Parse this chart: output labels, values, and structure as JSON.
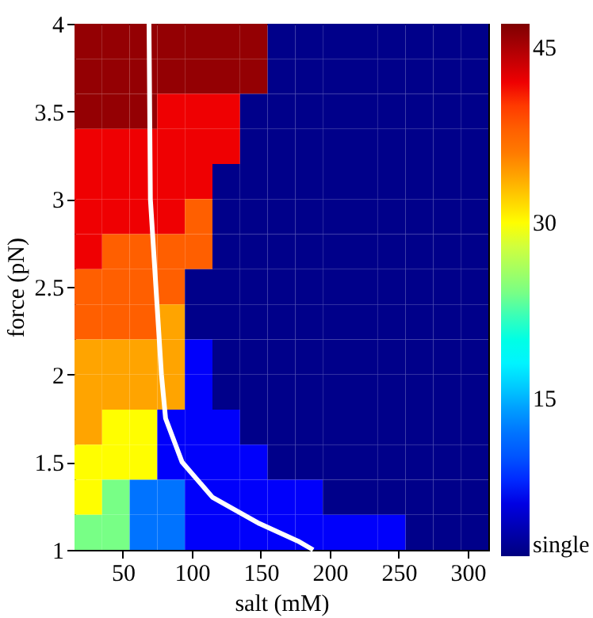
{
  "chart_data": {
    "type": "heatmap",
    "xlabel": "salt (mM)",
    "ylabel": "force (pN)",
    "x": [
      25,
      45,
      65,
      85,
      105,
      125,
      145,
      165,
      185,
      205,
      225,
      245,
      265,
      285,
      305
    ],
    "y": [
      3.9,
      3.7,
      3.5,
      3.3,
      3.1,
      2.9,
      2.7,
      2.5,
      2.3,
      2.1,
      1.9,
      1.7,
      1.5,
      1.3,
      1.1
    ],
    "cells": [
      [
        46,
        46,
        46,
        46,
        46,
        46,
        46,
        2,
        2,
        2,
        2,
        2,
        2,
        2,
        2
      ],
      [
        46,
        46,
        46,
        46,
        46,
        46,
        46,
        2,
        2,
        2,
        2,
        2,
        2,
        2,
        2
      ],
      [
        46,
        46,
        46,
        42,
        42,
        42,
        2,
        2,
        2,
        2,
        2,
        2,
        2,
        2,
        2
      ],
      [
        42,
        42,
        42,
        42,
        42,
        42,
        2,
        2,
        2,
        2,
        2,
        2,
        2,
        2,
        2
      ],
      [
        42,
        42,
        42,
        42,
        42,
        2,
        2,
        2,
        2,
        2,
        2,
        2,
        2,
        2,
        2
      ],
      [
        42,
        42,
        42,
        42,
        38,
        2,
        2,
        2,
        2,
        2,
        2,
        2,
        2,
        2,
        2
      ],
      [
        42,
        38,
        38,
        38,
        38,
        2,
        2,
        2,
        2,
        2,
        2,
        2,
        2,
        2,
        2
      ],
      [
        38,
        38,
        38,
        38,
        2,
        2,
        2,
        2,
        2,
        2,
        2,
        2,
        2,
        2,
        2
      ],
      [
        38,
        38,
        38,
        34,
        2,
        2,
        2,
        2,
        2,
        2,
        2,
        2,
        2,
        2,
        2
      ],
      [
        34,
        34,
        34,
        34,
        7,
        2,
        2,
        2,
        2,
        2,
        2,
        2,
        2,
        2,
        2
      ],
      [
        34,
        34,
        34,
        34,
        7,
        2,
        2,
        2,
        2,
        2,
        2,
        2,
        2,
        2,
        2
      ],
      [
        34,
        30,
        30,
        7,
        7,
        7,
        2,
        2,
        2,
        2,
        2,
        2,
        2,
        2,
        2
      ],
      [
        30,
        30,
        30,
        7,
        7,
        7,
        7,
        2,
        2,
        2,
        2,
        2,
        2,
        2,
        2
      ],
      [
        30,
        24,
        12,
        12,
        7,
        7,
        7,
        7,
        7,
        2,
        2,
        2,
        2,
        2,
        2
      ],
      [
        24,
        24,
        12,
        12,
        7,
        7,
        7,
        7,
        7,
        7,
        7,
        7,
        2,
        2,
        2
      ]
    ],
    "clim": [
      1.5,
      47
    ],
    "cticks": [
      {
        "value": 2.5,
        "label": "single"
      },
      15,
      30,
      45
    ],
    "xlim": [
      15,
      315
    ],
    "xticks": [
      50,
      100,
      150,
      200,
      250,
      300
    ],
    "ylim": [
      1,
      4
    ],
    "yticks": [
      1,
      1.5,
      2,
      2.5,
      3,
      3.5,
      4
    ],
    "grid": false,
    "series": [
      {
        "type": "line",
        "color": "#ffffff",
        "x": [
          69,
          70,
          74,
          78,
          81,
          93,
          115,
          149,
          177,
          188
        ],
        "values": [
          4,
          3,
          2.5,
          2,
          1.75,
          1.5,
          1.3,
          1.15,
          1.05,
          1.0
        ]
      }
    ]
  }
}
